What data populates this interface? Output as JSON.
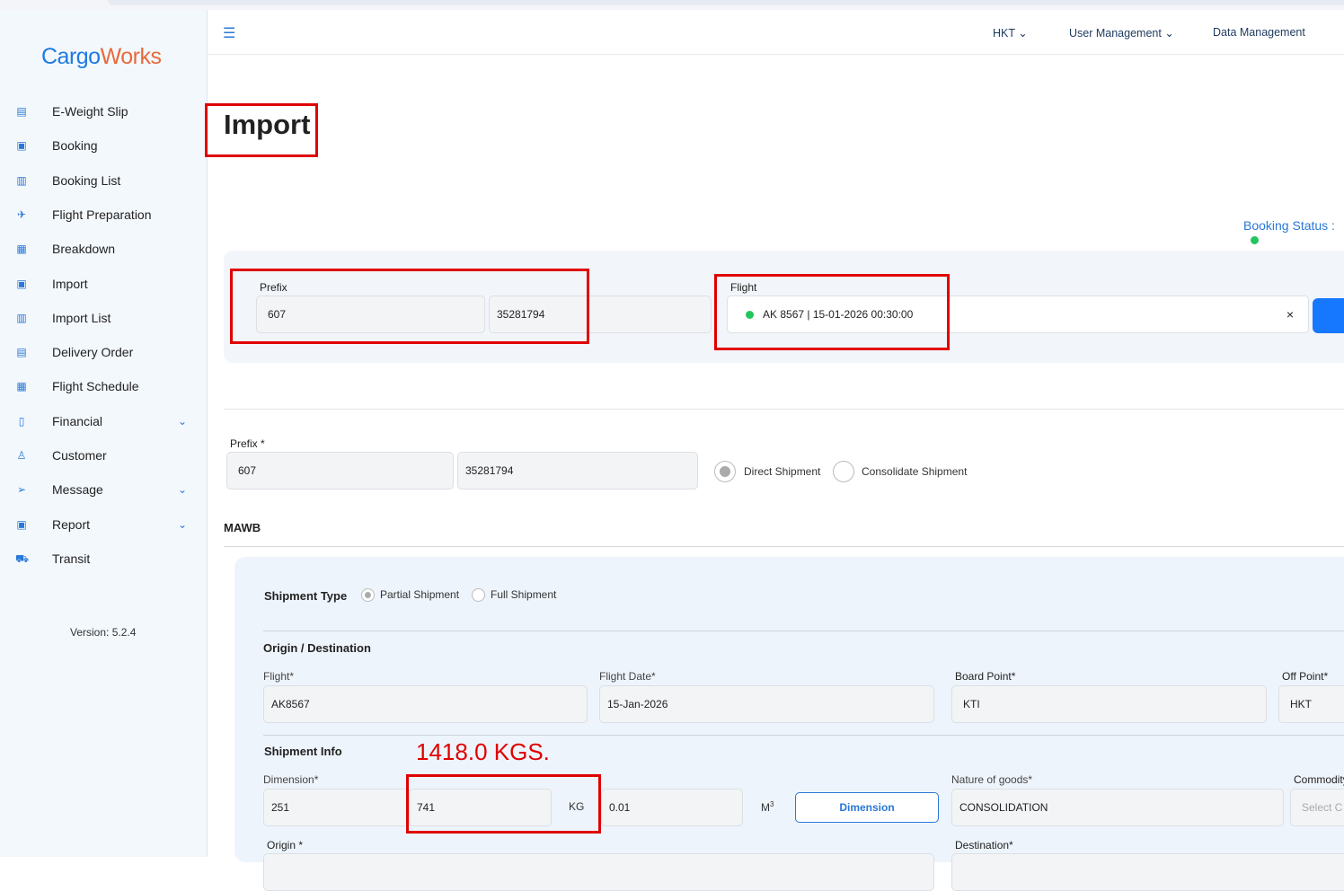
{
  "brand": {
    "logo_text_1": "Cargo",
    "logo_text_2": "Works"
  },
  "sidebar": {
    "items": [
      {
        "label": "E-Weight Slip",
        "icon": "receipt-icon"
      },
      {
        "label": "Booking",
        "icon": "clipboard-icon"
      },
      {
        "label": "Booking List",
        "icon": "list-doc-icon"
      },
      {
        "label": "Flight Preparation",
        "icon": "plane-icon"
      },
      {
        "label": "Breakdown",
        "icon": "grid-icon"
      },
      {
        "label": "Import",
        "icon": "clipboard-icon"
      },
      {
        "label": "Import List",
        "icon": "list-doc-icon"
      },
      {
        "label": "Delivery Order",
        "icon": "doc-icon"
      },
      {
        "label": "Flight Schedule",
        "icon": "calendar-icon"
      },
      {
        "label": "Financial",
        "icon": "finance-icon",
        "expandable": true
      },
      {
        "label": "Customer",
        "icon": "user-icon"
      },
      {
        "label": "Message",
        "icon": "send-icon",
        "expandable": true
      },
      {
        "label": "Report",
        "icon": "report-icon",
        "expandable": true
      },
      {
        "label": "Transit",
        "icon": "truck-icon"
      }
    ],
    "version": "Version: 5.2.4"
  },
  "header": {
    "nav": [
      "HKT",
      "User Management",
      "Data Management"
    ]
  },
  "page": {
    "title": "Import",
    "booking_status_label": "Booking Status :",
    "booking_status_color": "#22c55e"
  },
  "search": {
    "prefix_label": "Prefix",
    "prefix": "607",
    "awb": "35281794",
    "flight_label": "Flight",
    "flight_value": "AK 8567 | 15-01-2026 00:30:00",
    "clear": "×"
  },
  "awb": {
    "prefix_label": "Prefix *",
    "prefix": "607",
    "awb": "35281794",
    "direct": "Direct Shipment",
    "consolidate": "Consolidate Shipment",
    "selected": "Direct Shipment"
  },
  "mawb": {
    "title": "MAWB",
    "shipment_type_label": "Shipment Type",
    "partial": "Partial Shipment",
    "full": "Full Shipment",
    "shipment_type_selected": "Partial Shipment",
    "od_title": "Origin / Destination",
    "flight_label": "Flight*",
    "flight": "AK8567",
    "flight_date_label": "Flight Date*",
    "flight_date": "15-Jan-2026",
    "board_label": "Board Point*",
    "board": "KTI",
    "off_label": "Off Point*",
    "off": "HKT",
    "info_title": "Shipment Info",
    "annotation": "1418.0 KGS.",
    "dimension_label": "Dimension*",
    "pieces": "251",
    "weight": "741",
    "weight_unit": "KG",
    "volume": "0.01",
    "volume_unit": "M",
    "volume_sup": "3",
    "dimension_button": "Dimension",
    "nature_label": "Nature of goods*",
    "nature": "CONSOLIDATION",
    "commodity_label": "Commodity",
    "commodity_placeholder": "Select C",
    "origin_label": "Origin *",
    "destination_label": "Destination*"
  },
  "colors": {
    "accent": "#1677ff",
    "annotation": "#e00000",
    "brand_blue": "#1f7ae0",
    "brand_orange": "#e86a3a"
  }
}
